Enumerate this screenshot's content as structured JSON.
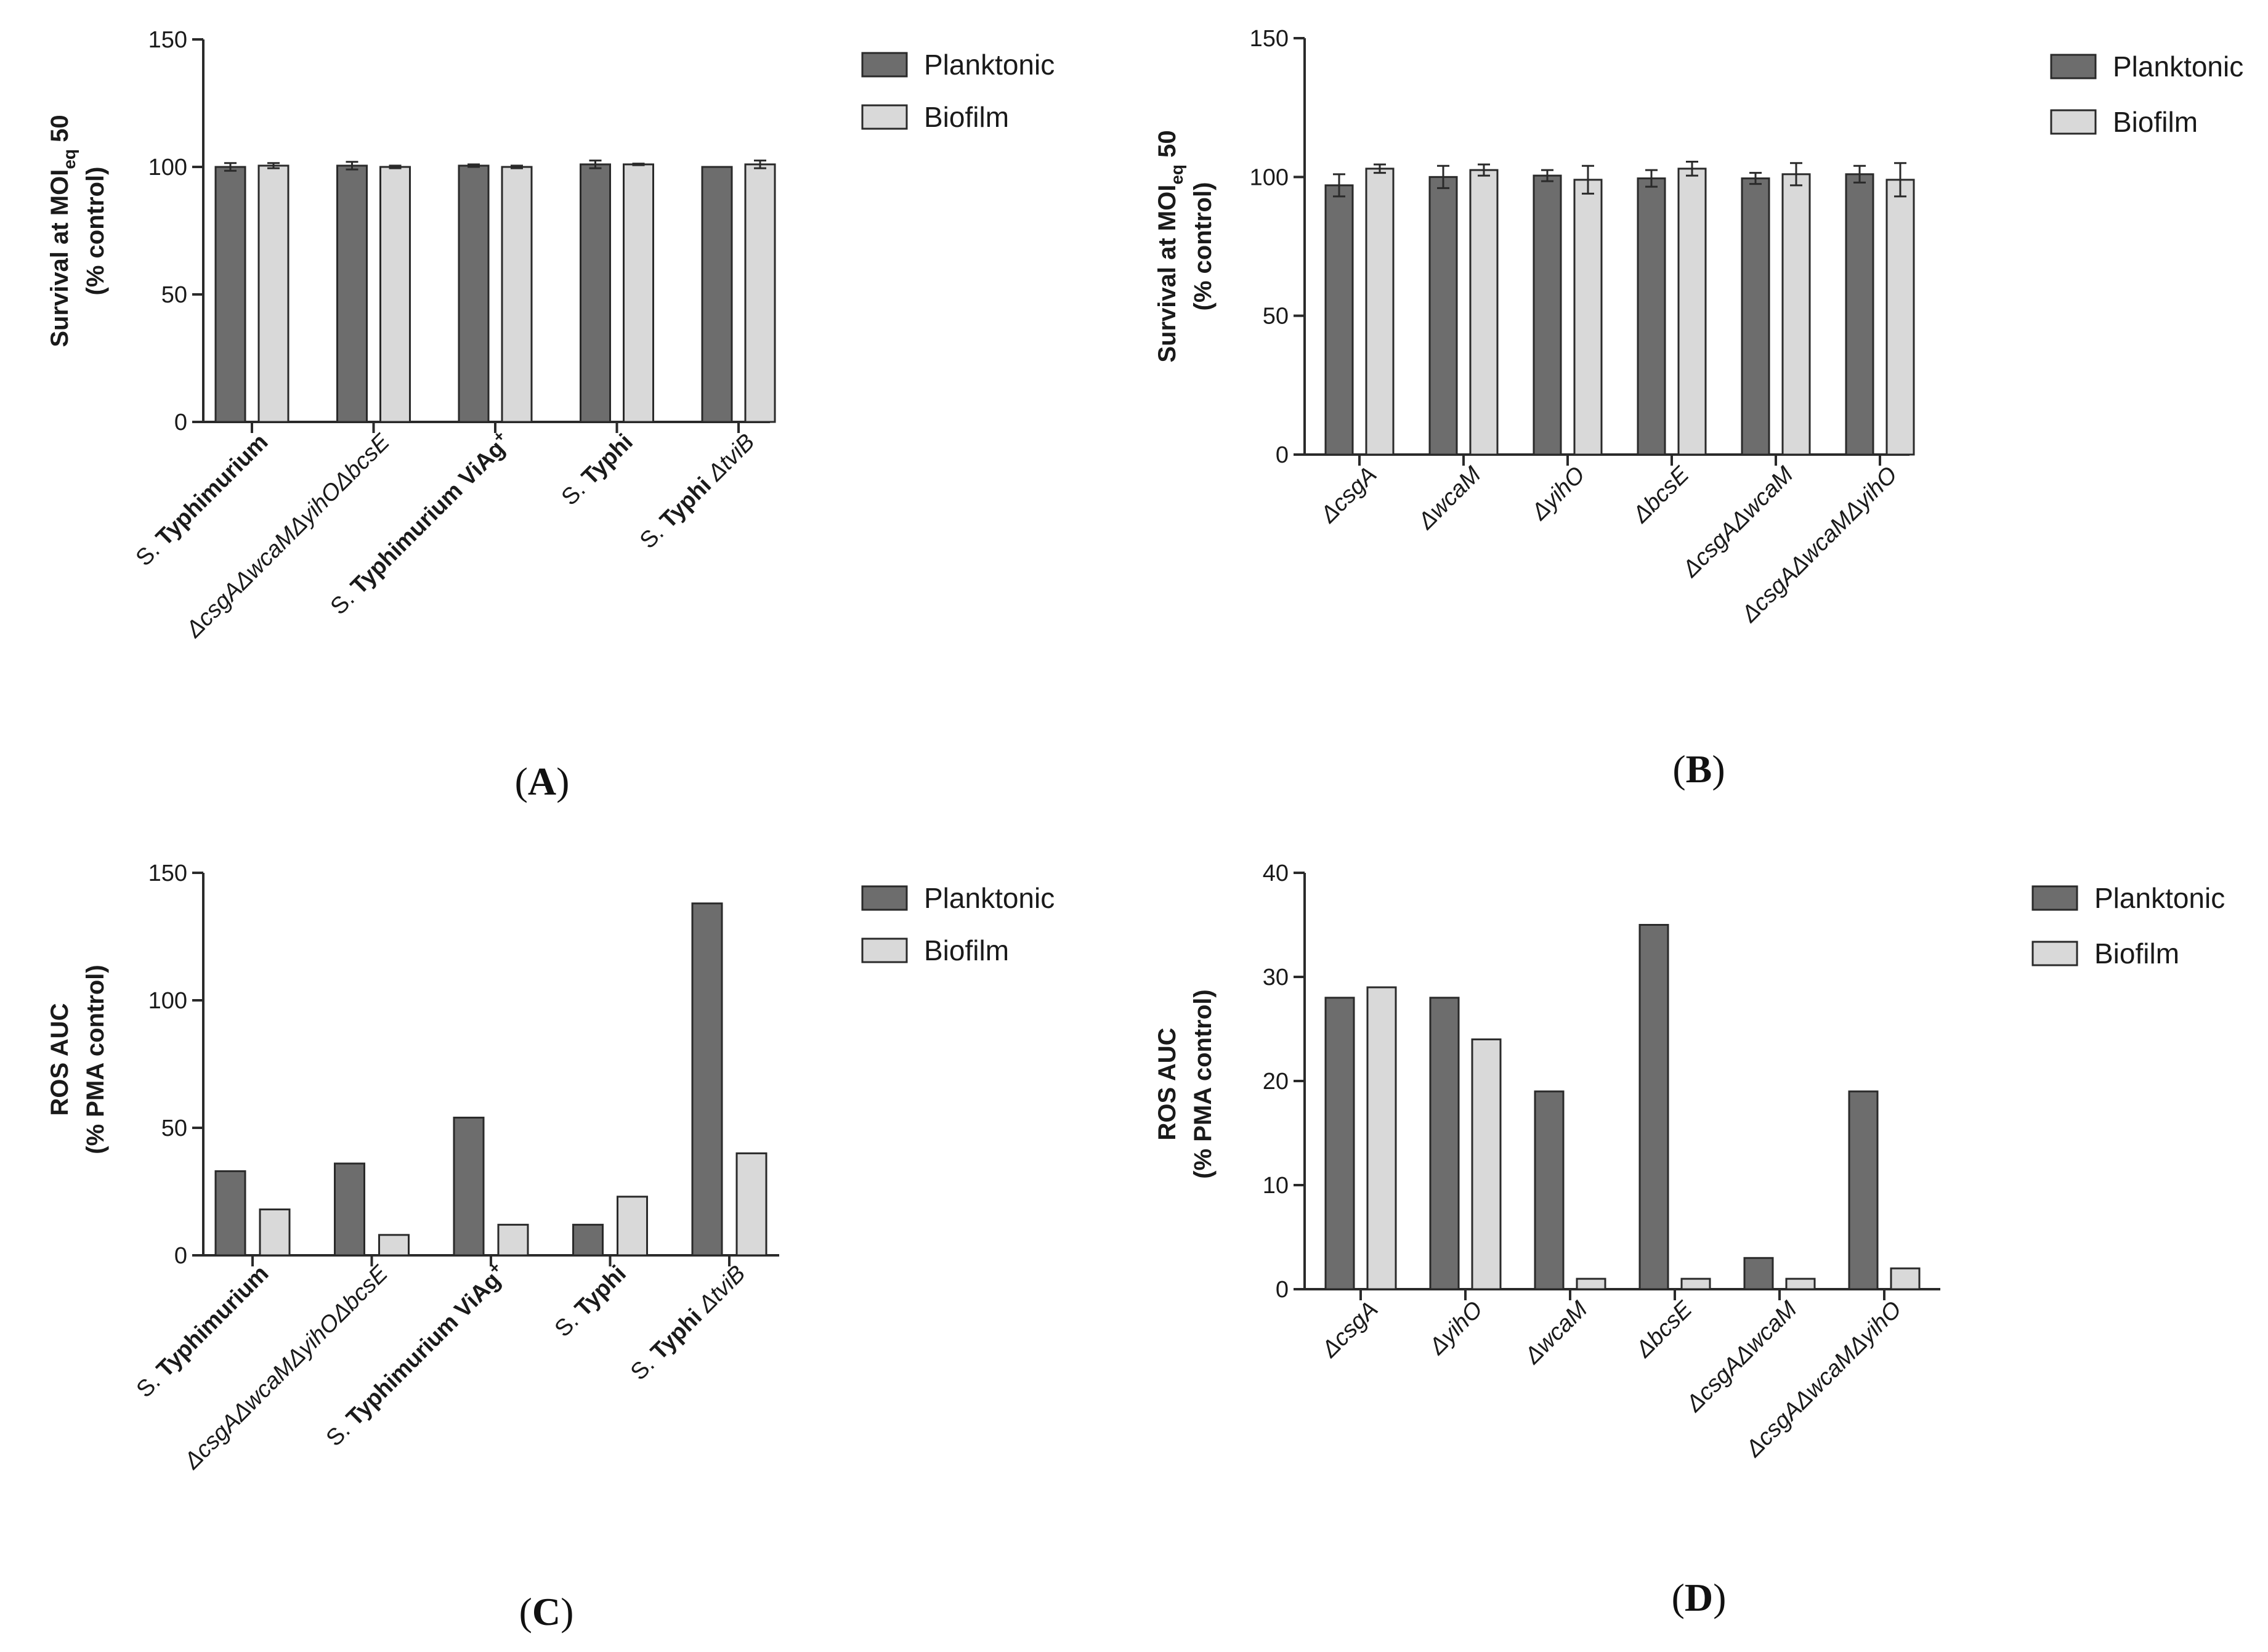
{
  "colors": {
    "planktonic": "#6d6d6d",
    "biofilm": "#d9d9d9",
    "stroke": "#2a2a2a"
  },
  "chart_data": [
    {
      "panel": "A",
      "panel_label": "(A)",
      "type": "bar",
      "ylabel_line1": "Survival at MOIeq 50",
      "ylabel_line2": "(% control)",
      "ylim": [
        0,
        150
      ],
      "yticks": [
        "0",
        "50",
        "100",
        "150"
      ],
      "legend": [
        "Planktonic",
        "Biofilm"
      ],
      "categories": [
        [
          {
            "t": "S. "
          },
          {
            "t": "Typhimurium",
            "s": "b"
          }
        ],
        [
          {
            "t": "ΔcsgAΔwcaMΔyihOΔbcsE",
            "s": "i"
          }
        ],
        [
          {
            "t": "S. "
          },
          {
            "t": "Typhimurium ViAg",
            "s": "b"
          },
          {
            "t": "+",
            "s": "sup"
          }
        ],
        [
          {
            "t": "S. "
          },
          {
            "t": "Typhi",
            "s": "b"
          }
        ],
        [
          {
            "t": "S. "
          },
          {
            "t": "Typhi ",
            "s": "b"
          },
          {
            "t": "ΔtviB",
            "s": "i"
          }
        ]
      ],
      "series": [
        {
          "name": "Planktonic",
          "values": [
            100,
            100.5,
            100.5,
            101,
            100
          ],
          "errors": [
            1.5,
            1.5,
            0.5,
            1.5,
            0
          ]
        },
        {
          "name": "Biofilm",
          "values": [
            100.5,
            100,
            100,
            101,
            101
          ],
          "errors": [
            1,
            0.5,
            0.5,
            0.3,
            1.5
          ]
        }
      ]
    },
    {
      "panel": "B",
      "panel_label": "(B)",
      "type": "bar",
      "ylabel_line1": "Survival at MOIeq 50",
      "ylabel_line2": "(% control)",
      "ylim": [
        0,
        150
      ],
      "yticks": [
        "0",
        "50",
        "100",
        "150"
      ],
      "legend": [
        "Planktonic",
        "Biofilm"
      ],
      "categories": [
        [
          {
            "t": "ΔcsgA",
            "s": "i"
          }
        ],
        [
          {
            "t": "ΔwcaM",
            "s": "i"
          }
        ],
        [
          {
            "t": "ΔyihO",
            "s": "i"
          }
        ],
        [
          {
            "t": "ΔbcsE",
            "s": "i"
          }
        ],
        [
          {
            "t": "ΔcsgAΔwcaM",
            "s": "i"
          }
        ],
        [
          {
            "t": "ΔcsgAΔwcaMΔyihO",
            "s": "i"
          }
        ]
      ],
      "series": [
        {
          "name": "Planktonic",
          "values": [
            97,
            100,
            100.5,
            99.5,
            99.5,
            101
          ],
          "errors": [
            4,
            4,
            2,
            3,
            2,
            3
          ]
        },
        {
          "name": "Biofilm",
          "values": [
            103,
            102.5,
            99,
            103,
            101,
            99
          ],
          "errors": [
            1.5,
            2,
            5,
            2.5,
            4,
            6
          ]
        }
      ]
    },
    {
      "panel": "C",
      "panel_label": "(C)",
      "type": "bar",
      "ylabel_line1": "ROS AUC",
      "ylabel_line2": "(% PMA control)",
      "ylim": [
        0,
        150
      ],
      "yticks": [
        "0",
        "50",
        "100",
        "150"
      ],
      "legend": [
        "Planktonic",
        "Biofilm"
      ],
      "categories": [
        [
          {
            "t": "S. "
          },
          {
            "t": "Typhimurium",
            "s": "b"
          }
        ],
        [
          {
            "t": "ΔcsgAΔwcaMΔyihOΔbcsE",
            "s": "i"
          }
        ],
        [
          {
            "t": "S. "
          },
          {
            "t": "Typhimurium ViAg",
            "s": "b"
          },
          {
            "t": "+",
            "s": "sup"
          }
        ],
        [
          {
            "t": "S. "
          },
          {
            "t": "Typhi",
            "s": "b"
          }
        ],
        [
          {
            "t": "S. "
          },
          {
            "t": "Typhi ",
            "s": "b"
          },
          {
            "t": "ΔtviB",
            "s": "i"
          }
        ]
      ],
      "series": [
        {
          "name": "Planktonic",
          "values": [
            33,
            36,
            54,
            12,
            138
          ]
        },
        {
          "name": "Biofilm",
          "values": [
            18,
            8,
            12,
            23,
            40
          ]
        }
      ]
    },
    {
      "panel": "D",
      "panel_label": "(D)",
      "type": "bar",
      "ylabel_line1": "ROS AUC",
      "ylabel_line2": "(% PMA control)",
      "ylim": [
        0,
        40
      ],
      "yticks": [
        "0",
        "10",
        "20",
        "30",
        "40"
      ],
      "legend": [
        "Planktonic",
        "Biofilm"
      ],
      "categories": [
        [
          {
            "t": "ΔcsgA",
            "s": "i"
          }
        ],
        [
          {
            "t": "ΔyihO",
            "s": "i"
          }
        ],
        [
          {
            "t": "ΔwcaM",
            "s": "i"
          }
        ],
        [
          {
            "t": "ΔbcsE",
            "s": "i"
          }
        ],
        [
          {
            "t": "ΔcsgAΔwcaM",
            "s": "i"
          }
        ],
        [
          {
            "t": "ΔcsgAΔwcaMΔyihO",
            "s": "i"
          }
        ]
      ],
      "series": [
        {
          "name": "Planktonic",
          "values": [
            28,
            28,
            19,
            35,
            3,
            19
          ]
        },
        {
          "name": "Biofilm",
          "values": [
            29,
            24,
            1,
            1,
            1,
            2
          ]
        }
      ]
    }
  ]
}
